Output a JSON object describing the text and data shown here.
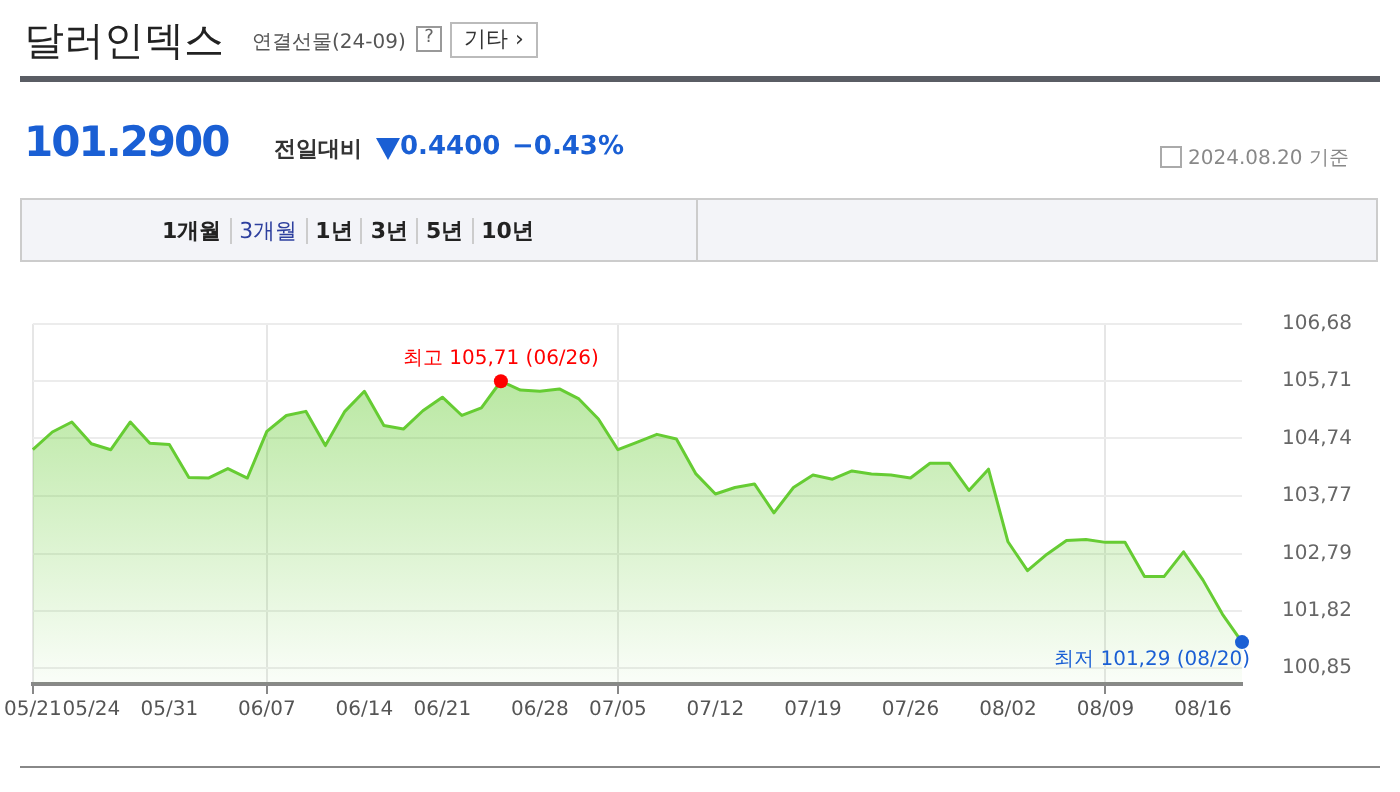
{
  "chart_data": {
    "type": "area",
    "title": "달러인덱스",
    "subtitle": "연결선물(24-09)",
    "categories": [
      "05/21",
      null,
      null,
      "05/24",
      null,
      null,
      null,
      "05/31",
      null,
      null,
      null,
      null,
      "06/07",
      null,
      null,
      null,
      null,
      "06/14",
      null,
      null,
      null,
      "06/21",
      null,
      null,
      null,
      null,
      "06/28",
      null,
      null,
      null,
      "07/05",
      null,
      null,
      null,
      null,
      "07/12",
      null,
      null,
      null,
      null,
      "07/19",
      null,
      null,
      null,
      null,
      "07/26",
      null,
      null,
      null,
      null,
      "08/02",
      null,
      null,
      null,
      null,
      "08/09",
      null,
      null,
      null,
      null,
      "08/16",
      null,
      null
    ],
    "series": [
      {
        "color": "#66cc33",
        "values": [
          104.55,
          104.85,
          105.02,
          104.65,
          104.55,
          105.02,
          104.66,
          104.64,
          104.08,
          104.07,
          104.23,
          104.07,
          104.86,
          105.13,
          105.2,
          104.62,
          105.2,
          105.54,
          104.96,
          104.9,
          105.21,
          105.44,
          105.13,
          105.26,
          105.71,
          105.56,
          105.54,
          105.58,
          105.41,
          105.07,
          104.55,
          104.68,
          104.81,
          104.73,
          104.14,
          103.8,
          103.91,
          103.97,
          103.48,
          103.91,
          104.12,
          104.05,
          104.19,
          104.14,
          104.12,
          104.07,
          104.32,
          104.32,
          103.86,
          104.22,
          102.99,
          102.5,
          102.78,
          103.01,
          103.03,
          102.98,
          102.98,
          102.4,
          102.4,
          102.82,
          102.34,
          101.76,
          101.29
        ]
      }
    ],
    "ylim": [
      100.58,
      106.68
    ],
    "yticks": [
      {
        "value": 100.85,
        "label": "100,85"
      },
      {
        "value": 101.82,
        "label": "101,82"
      },
      {
        "value": 102.79,
        "label": "102,79"
      },
      {
        "value": 103.77,
        "label": "103,77"
      },
      {
        "value": 104.74,
        "label": "104,74"
      },
      {
        "value": 105.71,
        "label": "105,71"
      },
      {
        "value": 106.68,
        "label": "106,68"
      }
    ],
    "grid": true,
    "legend": false,
    "marker": "none",
    "annotations": [
      "101.2900",
      "전일대비",
      "0.4400",
      "−0.43%",
      "2024.08.20 기준",
      "1개월",
      "3개월",
      "1년",
      "3년",
      "5년",
      "10년",
      "기타 ›",
      "?",
      {
        "text": "최고 105,71 (06/26)",
        "y": 105.71
      },
      "최저 101,29 (08/20)"
    ]
  }
}
